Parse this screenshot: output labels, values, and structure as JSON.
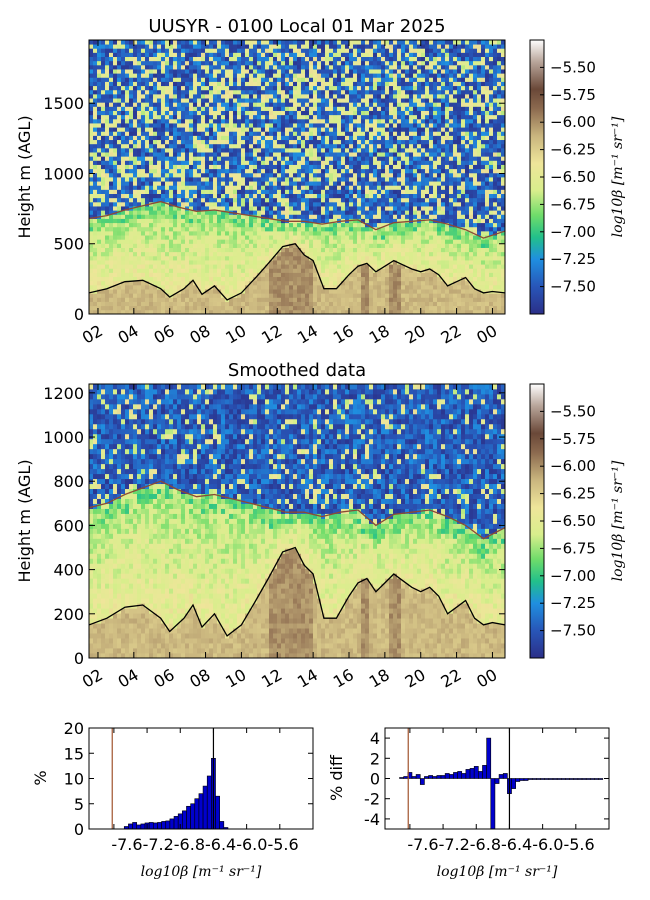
{
  "figure_title": "UUSYR - 0100 Local 01 Mar 2025",
  "panel2_title": "Smoothed data",
  "colorbar_label": "log10β [m⁻¹ sr⁻¹]",
  "colormap": [
    "#2b2f88",
    "#2856b8",
    "#1f8fe0",
    "#22c08a",
    "#6fdc6a",
    "#d8ee8c",
    "#efe59a",
    "#c9b57e",
    "#8c6a4f",
    "#6a4838",
    "#b8a59a",
    "#ffffff"
  ],
  "chart_data": [
    {
      "type": "heatmap",
      "title": "UUSYR - 0100 Local 01 Mar 2025",
      "ylabel": "Height m (AGL)",
      "xlabel": "",
      "ylim": [
        0,
        1950
      ],
      "xlim": [
        1.5,
        24.7
      ],
      "x_ticks": [
        "02",
        "04",
        "06",
        "08",
        "10",
        "12",
        "14",
        "16",
        "18",
        "20",
        "22",
        "00"
      ],
      "x_tick_hours": [
        2,
        4,
        6,
        8,
        10,
        12,
        14,
        16,
        18,
        20,
        22,
        24
      ],
      "y_ticks": [
        0,
        500,
        1000,
        1500
      ],
      "colorbar": {
        "range": [
          -7.75,
          -5.25
        ],
        "ticks": [
          "-5.50",
          "-5.75",
          "-6.00",
          "-6.25",
          "-6.50",
          "-6.75",
          "-7.00",
          "-7.25",
          "-7.50"
        ],
        "label": "log10β [m⁻¹ sr⁻¹]"
      },
      "lines": [
        {
          "role": "upper layer boundary",
          "color": "#8c4a35",
          "x": [
            1.5,
            2.5,
            3.5,
            4.5,
            5.5,
            6.5,
            7.5,
            8.5,
            9.5,
            10.5,
            11.5,
            12.5,
            13.5,
            14.5,
            15.5,
            16.5,
            17.5,
            18.5,
            19.5,
            20.5,
            21.5,
            22.5,
            23.5,
            24.7
          ],
          "y": [
            680,
            700,
            740,
            770,
            800,
            760,
            730,
            740,
            720,
            700,
            680,
            660,
            660,
            640,
            660,
            670,
            600,
            650,
            660,
            670,
            640,
            600,
            540,
            590
          ]
        },
        {
          "role": "lower layer boundary",
          "color": "#000000",
          "x": [
            1.5,
            2.5,
            3.5,
            4.5,
            5.5,
            6.0,
            6.8,
            7.3,
            7.8,
            8.5,
            9.2,
            10.0,
            10.8,
            11.5,
            12.3,
            13.0,
            13.5,
            14.0,
            14.6,
            15.3,
            16.0,
            16.5,
            17.0,
            17.5,
            18.0,
            18.5,
            19.0,
            19.5,
            20.0,
            20.5,
            21.0,
            21.5,
            22.0,
            22.5,
            23.0,
            23.5,
            24.0,
            24.7
          ],
          "y": [
            150,
            180,
            230,
            240,
            180,
            120,
            180,
            240,
            140,
            200,
            100,
            150,
            260,
            360,
            480,
            500,
            420,
            380,
            180,
            180,
            280,
            340,
            360,
            300,
            340,
            380,
            350,
            320,
            300,
            320,
            280,
            200,
            230,
            260,
            180,
            150,
            160,
            150
          ]
        }
      ]
    },
    {
      "type": "heatmap",
      "title": "Smoothed data",
      "ylabel": "Height m (AGL)",
      "xlabel": "",
      "ylim": [
        0,
        1240
      ],
      "xlim": [
        1.5,
        24.7
      ],
      "x_ticks": [
        "02",
        "04",
        "06",
        "08",
        "10",
        "12",
        "14",
        "16",
        "18",
        "20",
        "22",
        "00"
      ],
      "x_tick_hours": [
        2,
        4,
        6,
        8,
        10,
        12,
        14,
        16,
        18,
        20,
        22,
        24
      ],
      "y_ticks": [
        0,
        200,
        400,
        600,
        800,
        1000,
        1200
      ],
      "colorbar": {
        "range": [
          -7.75,
          -5.25
        ],
        "ticks": [
          "-5.50",
          "-5.75",
          "-6.00",
          "-6.25",
          "-6.50",
          "-6.75",
          "-7.00",
          "-7.25",
          "-7.50"
        ],
        "label": "log10β [m⁻¹ sr⁻¹]"
      },
      "lines": [
        {
          "role": "upper layer boundary",
          "color": "#8c4a35",
          "x": [
            1.5,
            2.5,
            3.5,
            4.5,
            5.5,
            6.5,
            7.5,
            8.5,
            9.5,
            10.5,
            11.5,
            12.5,
            13.5,
            14.5,
            15.5,
            16.5,
            17.5,
            18.5,
            19.5,
            20.5,
            21.5,
            22.5,
            23.5,
            24.7
          ],
          "y": [
            680,
            700,
            740,
            770,
            800,
            760,
            730,
            740,
            720,
            700,
            680,
            660,
            660,
            640,
            660,
            670,
            600,
            650,
            660,
            670,
            640,
            600,
            540,
            590
          ]
        },
        {
          "role": "lower layer boundary",
          "color": "#000000",
          "x": [
            1.5,
            2.5,
            3.5,
            4.5,
            5.5,
            6.0,
            6.8,
            7.3,
            7.8,
            8.5,
            9.2,
            10.0,
            10.8,
            11.5,
            12.3,
            13.0,
            13.5,
            14.0,
            14.6,
            15.3,
            16.0,
            16.5,
            17.0,
            17.5,
            18.0,
            18.5,
            19.0,
            19.5,
            20.0,
            20.5,
            21.0,
            21.5,
            22.0,
            22.5,
            23.0,
            23.5,
            24.0,
            24.7
          ],
          "y": [
            150,
            180,
            230,
            240,
            180,
            120,
            180,
            240,
            140,
            200,
            100,
            150,
            260,
            360,
            480,
            500,
            420,
            380,
            180,
            180,
            280,
            340,
            360,
            300,
            340,
            380,
            350,
            320,
            300,
            320,
            280,
            200,
            230,
            260,
            180,
            150,
            160,
            150
          ]
        }
      ]
    },
    {
      "type": "bar",
      "title": "",
      "ylabel": "%",
      "xlabel": "log10β [m⁻¹ sr⁻¹]",
      "xlim": [
        -7.9,
        -5.2
      ],
      "ylim": [
        0,
        20
      ],
      "x_ticks": [
        "-7.6",
        "-7.2",
        "-6.8",
        "-6.4",
        "-6.0",
        "-5.6"
      ],
      "y_ticks": [
        0,
        5,
        10,
        15,
        20
      ],
      "bar_color": "#0000cc",
      "bin_width": 0.05,
      "x": [
        -7.45,
        -7.4,
        -7.35,
        -7.3,
        -7.25,
        -7.2,
        -7.15,
        -7.1,
        -7.05,
        -7.0,
        -6.95,
        -6.9,
        -6.85,
        -6.8,
        -6.75,
        -6.7,
        -6.65,
        -6.6,
        -6.55,
        -6.5,
        -6.45,
        -6.4,
        -6.35,
        -6.3,
        -6.25
      ],
      "values": [
        0.5,
        1.0,
        1.3,
        0.8,
        1.0,
        1.2,
        1.3,
        1.2,
        1.3,
        1.5,
        1.6,
        2.0,
        2.5,
        3.0,
        3.6,
        4.5,
        5.0,
        6.0,
        7.0,
        8.5,
        10.5,
        14.0,
        6.5,
        1.5,
        0.3
      ],
      "vlines": [
        {
          "x": -7.62,
          "color": "#a0522d"
        },
        {
          "x": -6.4,
          "color": "#000000"
        }
      ]
    },
    {
      "type": "bar",
      "title": "",
      "ylabel": "% diff",
      "xlabel": "log10β [m⁻¹ sr⁻¹]",
      "xlim": [
        -7.9,
        -5.2
      ],
      "ylim": [
        -5,
        5
      ],
      "x_ticks": [
        "-7.6",
        "-7.2",
        "-6.8",
        "-6.4",
        "-6.0",
        "-5.6"
      ],
      "y_ticks": [
        -4,
        -2,
        0,
        2,
        4
      ],
      "bar_color": "#0000cc",
      "bin_width": 0.05,
      "x": [
        -7.7,
        -7.65,
        -7.6,
        -7.55,
        -7.5,
        -7.45,
        -7.4,
        -7.35,
        -7.3,
        -7.25,
        -7.2,
        -7.15,
        -7.1,
        -7.05,
        -7.0,
        -6.95,
        -6.9,
        -6.85,
        -6.8,
        -6.75,
        -6.7,
        -6.65,
        -6.6,
        -6.55,
        -6.5,
        -6.45,
        -6.4,
        -6.35,
        -6.3,
        -6.25,
        -6.2,
        -6.15,
        -6.1,
        -6.05,
        -6.0,
        -5.95,
        -5.9,
        -5.85,
        -5.8,
        -5.75,
        -5.7,
        -5.65,
        -5.6,
        -5.55,
        -5.5,
        -5.45,
        -5.4,
        -5.35,
        -5.3
      ],
      "values": [
        0.1,
        0.2,
        0.6,
        0.2,
        0.4,
        -0.6,
        0.2,
        0.3,
        0.2,
        0.3,
        0.3,
        0.5,
        0.4,
        0.6,
        0.7,
        0.5,
        0.9,
        1.0,
        1.2,
        0.7,
        1.3,
        4.0,
        -5.0,
        -0.5,
        0.4,
        0.5,
        -1.5,
        -1.0,
        -0.3,
        -0.2,
        -0.2,
        -0.1,
        -0.1,
        -0.1,
        -0.1,
        -0.1,
        -0.1,
        -0.1,
        -0.1,
        -0.1,
        -0.1,
        -0.1,
        -0.1,
        -0.1,
        -0.1,
        -0.1,
        -0.1,
        -0.1,
        -0.1
      ],
      "vlines": [
        {
          "x": -7.62,
          "color": "#a0522d"
        },
        {
          "x": -6.4,
          "color": "#000000"
        }
      ]
    }
  ]
}
